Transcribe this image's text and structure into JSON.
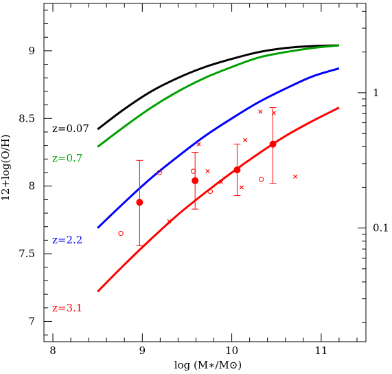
{
  "chart_data": {
    "type": "line",
    "xlabel": "log (M∗/M⊙)",
    "ylabel": "12+log(O/H)",
    "xlim": [
      7.9,
      11.5
    ],
    "ylim": [
      6.85,
      9.35
    ],
    "x_ticks": [
      "8",
      "9",
      "10",
      "11"
    ],
    "y_ticks": [
      "7",
      "7.5",
      "8",
      "8.5",
      "9"
    ],
    "right_axis": {
      "scale": "log",
      "ticks": [
        {
          "label": "1",
          "at_y": 8.69
        },
        {
          "label": "0.1",
          "at_y": 7.69
        }
      ]
    },
    "grid": false,
    "legend": "none",
    "series": [
      {
        "name": "z=0.07",
        "color": "#000000",
        "x": [
          8.5,
          8.8,
          9.1,
          9.4,
          9.7,
          10.0,
          10.3,
          10.6,
          10.9,
          11.2
        ],
        "y": [
          8.42,
          8.57,
          8.7,
          8.8,
          8.88,
          8.94,
          8.99,
          9.02,
          9.035,
          9.04
        ]
      },
      {
        "name": "z=0.7",
        "color": "#00a000",
        "x": [
          8.5,
          8.8,
          9.1,
          9.4,
          9.7,
          10.0,
          10.3,
          10.6,
          10.9,
          11.2
        ],
        "y": [
          8.29,
          8.44,
          8.58,
          8.7,
          8.8,
          8.88,
          8.95,
          8.99,
          9.02,
          9.04
        ]
      },
      {
        "name": "z=2.2",
        "color": "#0000ff",
        "x": [
          8.5,
          8.8,
          9.1,
          9.4,
          9.7,
          10.0,
          10.3,
          10.6,
          10.9,
          11.2
        ],
        "y": [
          7.69,
          7.88,
          8.06,
          8.22,
          8.37,
          8.5,
          8.62,
          8.72,
          8.81,
          8.87
        ]
      },
      {
        "name": "z=3.1",
        "color": "#ff0000",
        "x": [
          8.5,
          8.8,
          9.1,
          9.4,
          9.7,
          10.0,
          10.3,
          10.6,
          10.9,
          11.2
        ],
        "y": [
          7.22,
          7.42,
          7.61,
          7.79,
          7.95,
          8.1,
          8.24,
          8.37,
          8.48,
          8.58
        ]
      }
    ],
    "points": {
      "color": "#ff0000",
      "filled_with_errors": [
        {
          "x": 8.97,
          "y": 7.88,
          "lo": 7.56,
          "hi": 8.19
        },
        {
          "x": 9.59,
          "y": 8.04,
          "lo": 7.83,
          "hi": 8.25
        },
        {
          "x": 10.06,
          "y": 8.12,
          "lo": 7.93,
          "hi": 8.31
        },
        {
          "x": 10.46,
          "y": 8.31,
          "lo": 8.02,
          "hi": 8.58
        }
      ],
      "open_circles": [
        {
          "x": 8.76,
          "y": 7.65
        },
        {
          "x": 9.19,
          "y": 8.1
        },
        {
          "x": 9.57,
          "y": 8.11
        },
        {
          "x": 9.76,
          "y": 7.96
        },
        {
          "x": 10.33,
          "y": 8.05
        }
      ],
      "crosses": [
        {
          "x": 9.3,
          "y": 7.74
        },
        {
          "x": 9.63,
          "y": 8.31
        },
        {
          "x": 9.73,
          "y": 8.11
        },
        {
          "x": 9.88,
          "y": 8.03
        },
        {
          "x": 10.11,
          "y": 7.99
        },
        {
          "x": 10.15,
          "y": 8.34
        },
        {
          "x": 10.32,
          "y": 8.55
        },
        {
          "x": 10.47,
          "y": 8.54
        },
        {
          "x": 10.71,
          "y": 8.07
        }
      ]
    }
  }
}
